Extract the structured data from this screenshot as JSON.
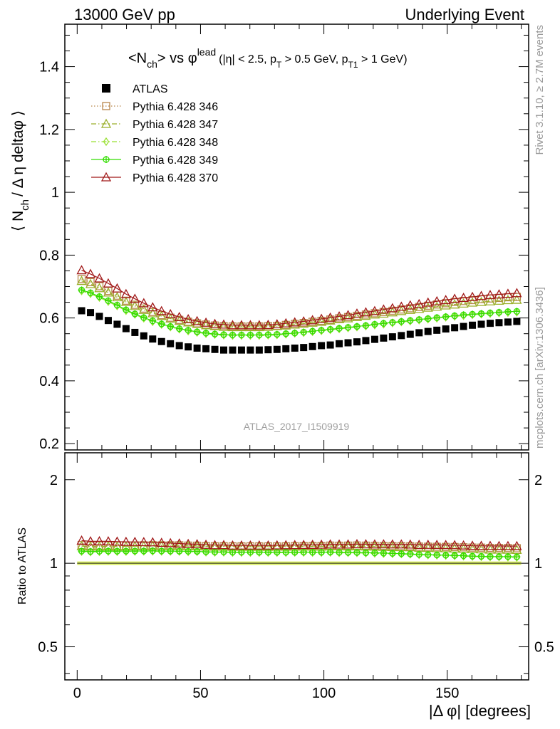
{
  "header": {
    "left": "13000 GeV pp",
    "right": "Underlying Event"
  },
  "side_labels": {
    "top": "Rivet 3.1.10, ≥ 2.7M events",
    "bottom": "mcplots.cern.ch [arXiv:1306.3436]"
  },
  "watermark": "ATLAS_2017_I1509919",
  "colors": {
    "ATLAS": "#000000",
    "346": "#b8864b",
    "347": "#9aaf2a",
    "348": "#99e033",
    "349": "#33dd00",
    "370": "#a01818"
  },
  "chart_data": [
    {
      "type": "scatter",
      "title": "<N_ch> vs φ^lead (|η| < 2.5, p_T > 0.5 GeV, p_T1 > 1 GeV)",
      "title_parts": {
        "main": "<N",
        "sub1": "ch",
        "mid": "> vs φ",
        "sup": "lead",
        "cuts_a": "(|η| < 2.5, p",
        "sub2": "T",
        "cuts_b": " > 0.5 GeV, p",
        "sub3": "T1",
        "cuts_c": " > 1 GeV)"
      },
      "ylabel": "⟨ N_ch / Δ η deltaφ ⟩",
      "ylabel_parts": {
        "open": "⟨ N",
        "sub": "ch",
        "rest": "/ Δ η deltaφ ⟩"
      },
      "xlim": [
        -5,
        183
      ],
      "ylim": [
        0.18,
        1.535
      ],
      "y_ticks": [
        "0.2",
        "0.4",
        "0.6",
        "0.8",
        "1",
        "1.2",
        "1.4"
      ],
      "legend_position": "top-left",
      "x": [
        1.8,
        5.4,
        9.0,
        12.6,
        16.2,
        19.8,
        23.4,
        27.0,
        30.6,
        34.2,
        37.8,
        41.4,
        45.0,
        48.6,
        52.2,
        55.8,
        59.4,
        63.0,
        66.6,
        70.2,
        73.8,
        77.4,
        81.0,
        84.6,
        88.2,
        91.8,
        95.4,
        99.0,
        102.6,
        106.2,
        109.8,
        113.4,
        117.0,
        120.6,
        124.2,
        127.8,
        131.4,
        135.0,
        138.6,
        142.2,
        145.8,
        149.4,
        153.0,
        156.6,
        160.2,
        163.8,
        167.4,
        171.0,
        174.6,
        178.2
      ],
      "series": [
        {
          "name": "ATLAS",
          "key": "ATLAS",
          "marker": "square-filled",
          "line": "none",
          "values": [
            0.623,
            0.617,
            0.605,
            0.592,
            0.58,
            0.566,
            0.554,
            0.543,
            0.533,
            0.525,
            0.518,
            0.512,
            0.508,
            0.504,
            0.502,
            0.5,
            0.498,
            0.498,
            0.498,
            0.498,
            0.498,
            0.499,
            0.5,
            0.502,
            0.504,
            0.506,
            0.509,
            0.512,
            0.514,
            0.518,
            0.521,
            0.524,
            0.528,
            0.532,
            0.536,
            0.54,
            0.544,
            0.548,
            0.553,
            0.557,
            0.561,
            0.565,
            0.569,
            0.573,
            0.577,
            0.58,
            0.583,
            0.585,
            0.587,
            0.589
          ]
        },
        {
          "name": "Pythia 6.428 346",
          "key": "346",
          "marker": "square-open",
          "line": "dotted",
          "values": [
            0.724,
            0.714,
            0.701,
            0.686,
            0.671,
            0.655,
            0.642,
            0.63,
            0.619,
            0.609,
            0.601,
            0.594,
            0.588,
            0.583,
            0.579,
            0.576,
            0.574,
            0.573,
            0.573,
            0.573,
            0.573,
            0.574,
            0.575,
            0.578,
            0.581,
            0.584,
            0.588,
            0.591,
            0.595,
            0.599,
            0.603,
            0.607,
            0.611,
            0.615,
            0.619,
            0.623,
            0.627,
            0.631,
            0.635,
            0.639,
            0.643,
            0.647,
            0.651,
            0.654,
            0.657,
            0.66,
            0.662,
            0.664,
            0.666,
            0.667
          ]
        },
        {
          "name": "Pythia 6.428 347",
          "key": "347",
          "marker": "triangle-open",
          "line": "dashdot",
          "values": [
            0.718,
            0.708,
            0.695,
            0.681,
            0.666,
            0.651,
            0.638,
            0.626,
            0.615,
            0.606,
            0.598,
            0.591,
            0.586,
            0.581,
            0.577,
            0.574,
            0.572,
            0.571,
            0.571,
            0.571,
            0.571,
            0.572,
            0.574,
            0.576,
            0.579,
            0.582,
            0.585,
            0.588,
            0.592,
            0.596,
            0.599,
            0.603,
            0.607,
            0.611,
            0.614,
            0.618,
            0.622,
            0.626,
            0.629,
            0.633,
            0.636,
            0.64,
            0.643,
            0.646,
            0.649,
            0.651,
            0.653,
            0.655,
            0.657,
            0.658
          ]
        },
        {
          "name": "Pythia 6.428 348",
          "key": "348",
          "marker": "diamond-open",
          "line": "dashdot",
          "values": [
            0.686,
            0.677,
            0.665,
            0.652,
            0.638,
            0.623,
            0.611,
            0.599,
            0.588,
            0.579,
            0.571,
            0.564,
            0.558,
            0.554,
            0.55,
            0.547,
            0.545,
            0.544,
            0.544,
            0.544,
            0.544,
            0.545,
            0.546,
            0.548,
            0.551,
            0.553,
            0.556,
            0.559,
            0.562,
            0.565,
            0.568,
            0.571,
            0.574,
            0.577,
            0.58,
            0.584,
            0.587,
            0.59,
            0.593,
            0.596,
            0.599,
            0.602,
            0.605,
            0.607,
            0.61,
            0.612,
            0.614,
            0.616,
            0.617,
            0.618
          ]
        },
        {
          "name": "Pythia 6.428 349",
          "key": "349",
          "marker": "circle-cross",
          "line": "solid",
          "values": [
            0.689,
            0.68,
            0.668,
            0.655,
            0.641,
            0.626,
            0.613,
            0.601,
            0.591,
            0.581,
            0.573,
            0.566,
            0.561,
            0.556,
            0.552,
            0.549,
            0.547,
            0.546,
            0.546,
            0.546,
            0.546,
            0.547,
            0.548,
            0.55,
            0.552,
            0.555,
            0.558,
            0.561,
            0.564,
            0.567,
            0.57,
            0.573,
            0.576,
            0.58,
            0.583,
            0.586,
            0.589,
            0.592,
            0.595,
            0.598,
            0.601,
            0.604,
            0.607,
            0.61,
            0.612,
            0.614,
            0.616,
            0.618,
            0.62,
            0.621
          ]
        },
        {
          "name": "Pythia 6.428 370",
          "key": "370",
          "marker": "triangle-open",
          "line": "solid",
          "values": [
            0.752,
            0.74,
            0.726,
            0.71,
            0.694,
            0.676,
            0.661,
            0.647,
            0.634,
            0.622,
            0.612,
            0.603,
            0.596,
            0.59,
            0.585,
            0.581,
            0.579,
            0.577,
            0.577,
            0.577,
            0.577,
            0.578,
            0.58,
            0.583,
            0.586,
            0.589,
            0.593,
            0.597,
            0.601,
            0.605,
            0.609,
            0.614,
            0.618,
            0.622,
            0.627,
            0.631,
            0.636,
            0.64,
            0.644,
            0.649,
            0.653,
            0.657,
            0.661,
            0.664,
            0.667,
            0.67,
            0.673,
            0.675,
            0.677,
            0.679
          ]
        }
      ]
    },
    {
      "type": "scatter",
      "title": "",
      "ylabel": "Ratio to ATLAS",
      "xlabel": "|Δ φ| [degrees]",
      "xlim": [
        -5,
        183
      ],
      "x_ticks": [
        "0",
        "50",
        "100",
        "150"
      ],
      "ylim": [
        0.38,
        2.5
      ],
      "y_scale": "log",
      "y_ticks": [
        "0.5",
        "1",
        "2"
      ],
      "reference_line": 1,
      "note": "series = model / ATLAS, computed from the values above"
    }
  ]
}
